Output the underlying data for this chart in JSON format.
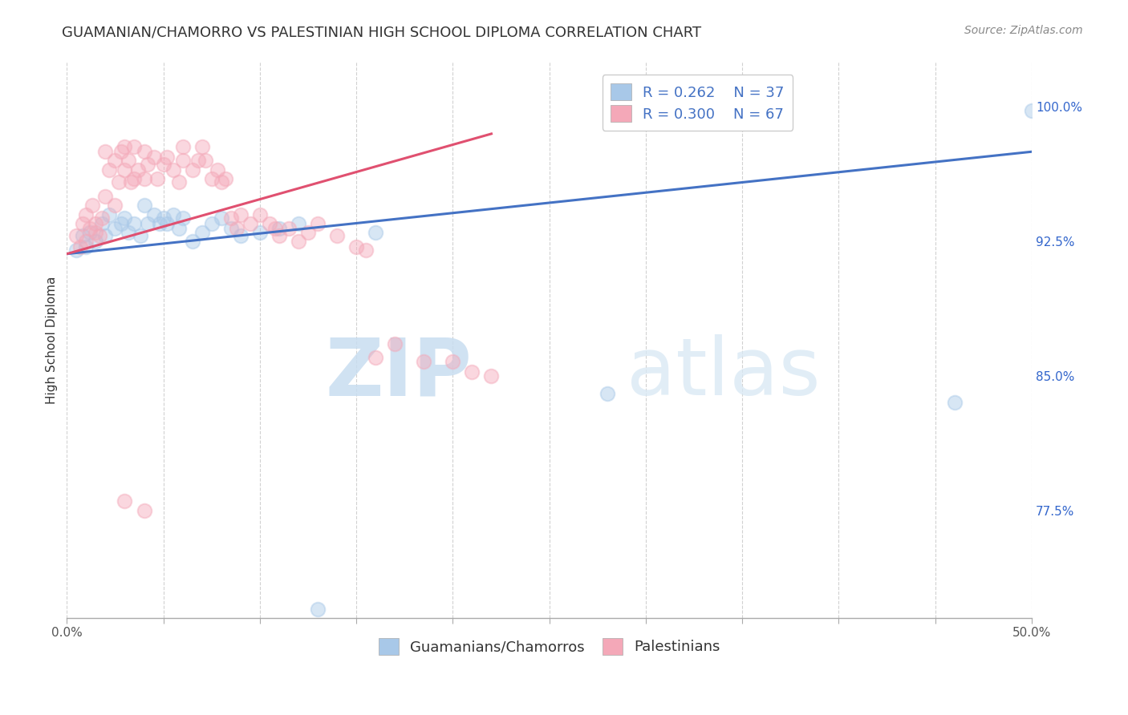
{
  "title": "GUAMANIAN/CHAMORRO VS PALESTINIAN HIGH SCHOOL DIPLOMA CORRELATION CHART",
  "source": "Source: ZipAtlas.com",
  "ylabel": "High School Diploma",
  "ytick_labels": [
    "77.5%",
    "85.0%",
    "92.5%",
    "100.0%"
  ],
  "ytick_values": [
    0.775,
    0.85,
    0.925,
    1.0
  ],
  "xmin": 0.0,
  "xmax": 0.5,
  "ymin": 0.715,
  "ymax": 1.025,
  "legend_r_blue": "0.262",
  "legend_n_blue": "37",
  "legend_r_pink": "0.300",
  "legend_n_pink": "67",
  "legend_label_blue": "Guamanians/Chamorros",
  "legend_label_pink": "Palestinians",
  "watermark_zip": "ZIP",
  "watermark_atlas": "atlas",
  "blue_color": "#a8c8e8",
  "pink_color": "#f4a8b8",
  "blue_line_color": "#4472c4",
  "pink_line_color": "#e05070",
  "blue_scatter_x": [
    0.005,
    0.008,
    0.01,
    0.012,
    0.015,
    0.018,
    0.02,
    0.022,
    0.025,
    0.028,
    0.03,
    0.032,
    0.035,
    0.038,
    0.04,
    0.042,
    0.045,
    0.048,
    0.05,
    0.052,
    0.055,
    0.058,
    0.06,
    0.065,
    0.07,
    0.075,
    0.08,
    0.085,
    0.09,
    0.1,
    0.11,
    0.12,
    0.16,
    0.28,
    0.46,
    0.5,
    0.13
  ],
  "blue_scatter_y": [
    0.92,
    0.928,
    0.922,
    0.93,
    0.925,
    0.935,
    0.928,
    0.94,
    0.932,
    0.935,
    0.938,
    0.93,
    0.935,
    0.928,
    0.945,
    0.935,
    0.94,
    0.935,
    0.938,
    0.935,
    0.94,
    0.932,
    0.938,
    0.925,
    0.93,
    0.935,
    0.938,
    0.932,
    0.928,
    0.93,
    0.932,
    0.935,
    0.93,
    0.84,
    0.835,
    0.998,
    0.72
  ],
  "pink_scatter_x": [
    0.005,
    0.007,
    0.008,
    0.01,
    0.01,
    0.012,
    0.013,
    0.015,
    0.015,
    0.017,
    0.018,
    0.02,
    0.02,
    0.022,
    0.025,
    0.025,
    0.027,
    0.028,
    0.03,
    0.03,
    0.032,
    0.033,
    0.035,
    0.035,
    0.037,
    0.04,
    0.04,
    0.042,
    0.045,
    0.047,
    0.05,
    0.052,
    0.055,
    0.058,
    0.06,
    0.06,
    0.065,
    0.068,
    0.07,
    0.072,
    0.075,
    0.078,
    0.08,
    0.082,
    0.085,
    0.088,
    0.09,
    0.095,
    0.1,
    0.105,
    0.108,
    0.11,
    0.115,
    0.12,
    0.125,
    0.13,
    0.14,
    0.15,
    0.155,
    0.16,
    0.17,
    0.185,
    0.2,
    0.21,
    0.22,
    0.03,
    0.04
  ],
  "pink_scatter_y": [
    0.928,
    0.922,
    0.935,
    0.925,
    0.94,
    0.932,
    0.945,
    0.93,
    0.935,
    0.928,
    0.938,
    0.95,
    0.975,
    0.965,
    0.945,
    0.97,
    0.958,
    0.975,
    0.965,
    0.978,
    0.97,
    0.958,
    0.96,
    0.978,
    0.965,
    0.96,
    0.975,
    0.968,
    0.972,
    0.96,
    0.968,
    0.972,
    0.965,
    0.958,
    0.97,
    0.978,
    0.965,
    0.97,
    0.978,
    0.97,
    0.96,
    0.965,
    0.958,
    0.96,
    0.938,
    0.932,
    0.94,
    0.935,
    0.94,
    0.935,
    0.932,
    0.928,
    0.932,
    0.925,
    0.93,
    0.935,
    0.928,
    0.922,
    0.92,
    0.86,
    0.868,
    0.858,
    0.858,
    0.852,
    0.85,
    0.78,
    0.775
  ],
  "blue_trendline_x": [
    0.0,
    0.5
  ],
  "blue_trendline_y": [
    0.918,
    0.975
  ],
  "pink_trendline_x": [
    0.0,
    0.22
  ],
  "pink_trendline_y": [
    0.918,
    0.985
  ],
  "title_fontsize": 13,
  "source_fontsize": 10,
  "axis_label_fontsize": 11,
  "tick_fontsize": 11,
  "legend_fontsize": 13,
  "watermark_fontsize_zip": 72,
  "watermark_fontsize_atlas": 72,
  "scatter_size": 160,
  "scatter_alpha": 0.45,
  "background_color": "#ffffff",
  "grid_color": "#cccccc",
  "right_ytick_color": "#3366cc",
  "title_color": "#333333"
}
